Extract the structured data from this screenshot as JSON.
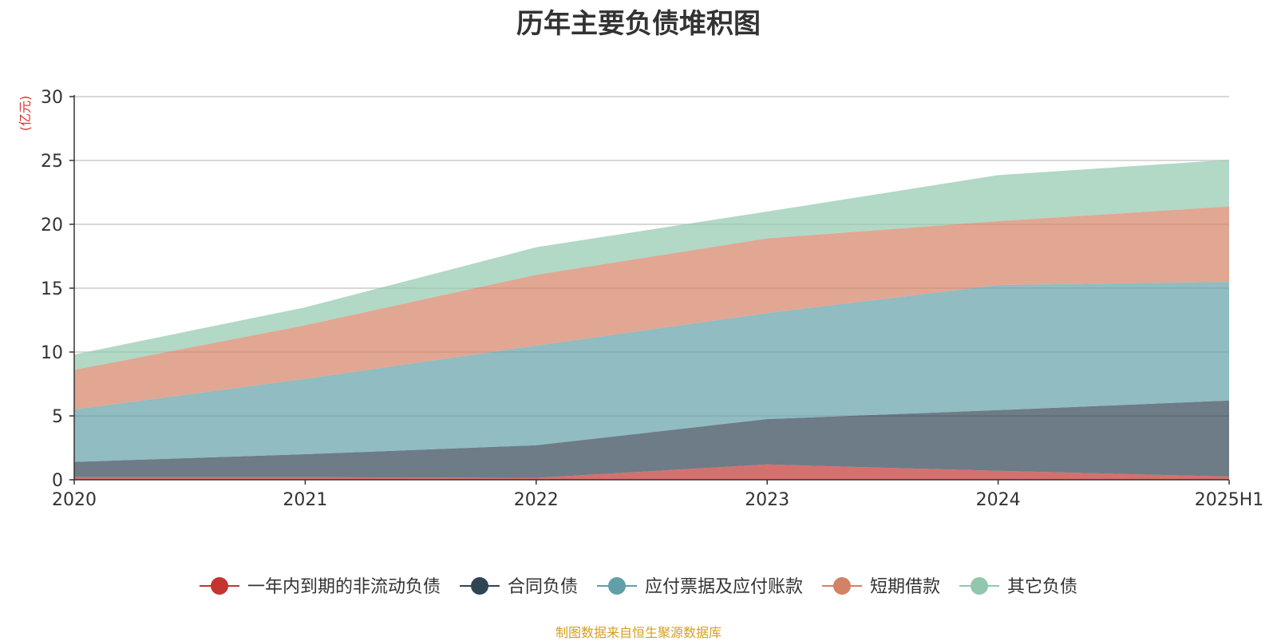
{
  "chart_data": {
    "type": "area",
    "title": "历年主要负债堆积图",
    "unit_label": "(亿元)",
    "source": "制图数据来自恒生聚源数据库",
    "categories": [
      "2020",
      "2021",
      "2022",
      "2023",
      "2024",
      "2025H1"
    ],
    "ylim": [
      0,
      30
    ],
    "yticks": [
      0,
      5,
      10,
      15,
      20,
      25,
      30
    ],
    "grid": true,
    "stacked": true,
    "legend_position": "bottom",
    "series": [
      {
        "name": "一年内到期的非流动负债",
        "color": "#c23531",
        "values": [
          0.2,
          0.2,
          0.15,
          1.2,
          0.7,
          0.25
        ]
      },
      {
        "name": "合同负债",
        "color": "#2f4554",
        "values": [
          1.2,
          1.8,
          2.55,
          3.55,
          4.75,
          5.95
        ]
      },
      {
        "name": "应付票据及应付账款",
        "color": "#61a0a8",
        "values": [
          4.1,
          5.9,
          7.8,
          8.3,
          9.8,
          9.3
        ]
      },
      {
        "name": "短期借款",
        "color": "#d48265",
        "values": [
          3.1,
          4.2,
          5.55,
          5.85,
          5.0,
          5.9
        ]
      },
      {
        "name": "其它负债",
        "color": "#91c7ae",
        "values": [
          1.2,
          1.4,
          2.15,
          2.1,
          3.6,
          3.65
        ]
      }
    ]
  }
}
